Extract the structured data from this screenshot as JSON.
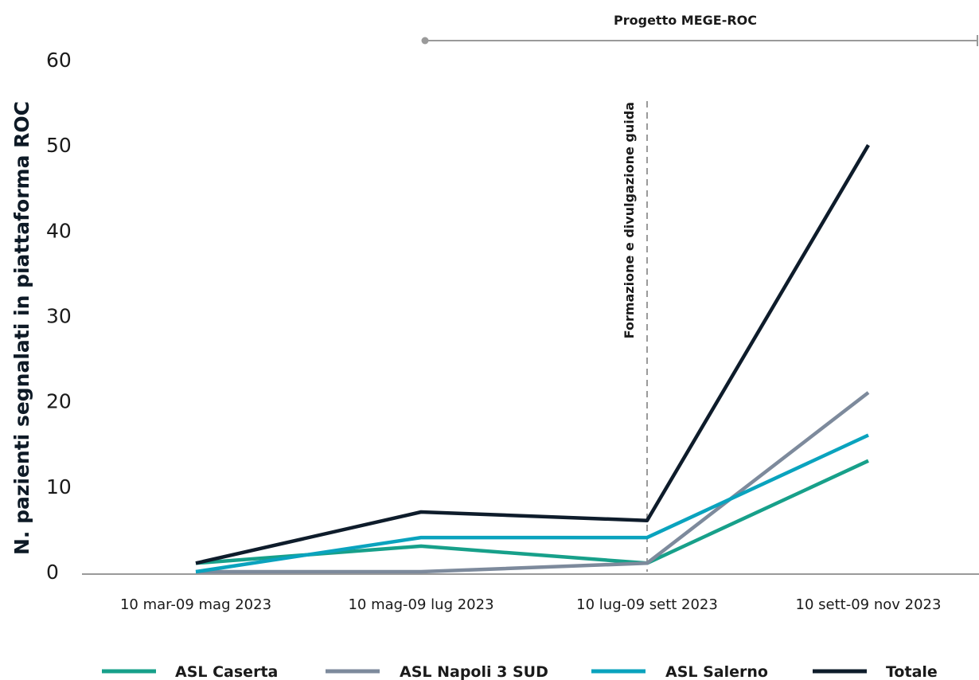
{
  "chart_data": {
    "type": "line",
    "ylabel": "N. pazienti segnalati in piattaforma ROC",
    "xlabel": "",
    "ylim": [
      0,
      60
    ],
    "yticks": [
      0,
      10,
      20,
      30,
      40,
      50,
      60
    ],
    "categories": [
      "10 mar-09 mag 2023",
      "10 mag-09 lug 2023",
      "10 lug-09 sett 2023",
      "10 sett-09 nov 2023"
    ],
    "grid": false,
    "legend_position": "bottom",
    "series": [
      {
        "name": "ASL Caserta",
        "color": "#17a08a",
        "values": [
          1,
          3,
          1,
          13
        ]
      },
      {
        "name": "ASL Napoli 3 SUD",
        "color": "#7d8a9c",
        "values": [
          0,
          0,
          1,
          21
        ]
      },
      {
        "name": "ASL Salerno",
        "color": "#0aa3be",
        "values": [
          0,
          4,
          4,
          16
        ]
      },
      {
        "name": "Totale",
        "color": "#0e1c2b",
        "values": [
          1,
          7,
          6,
          50
        ]
      }
    ],
    "annotations": {
      "project_label": "Progetto MEGE-ROC",
      "vline_label": "Formazione e divulgazione guida"
    }
  }
}
